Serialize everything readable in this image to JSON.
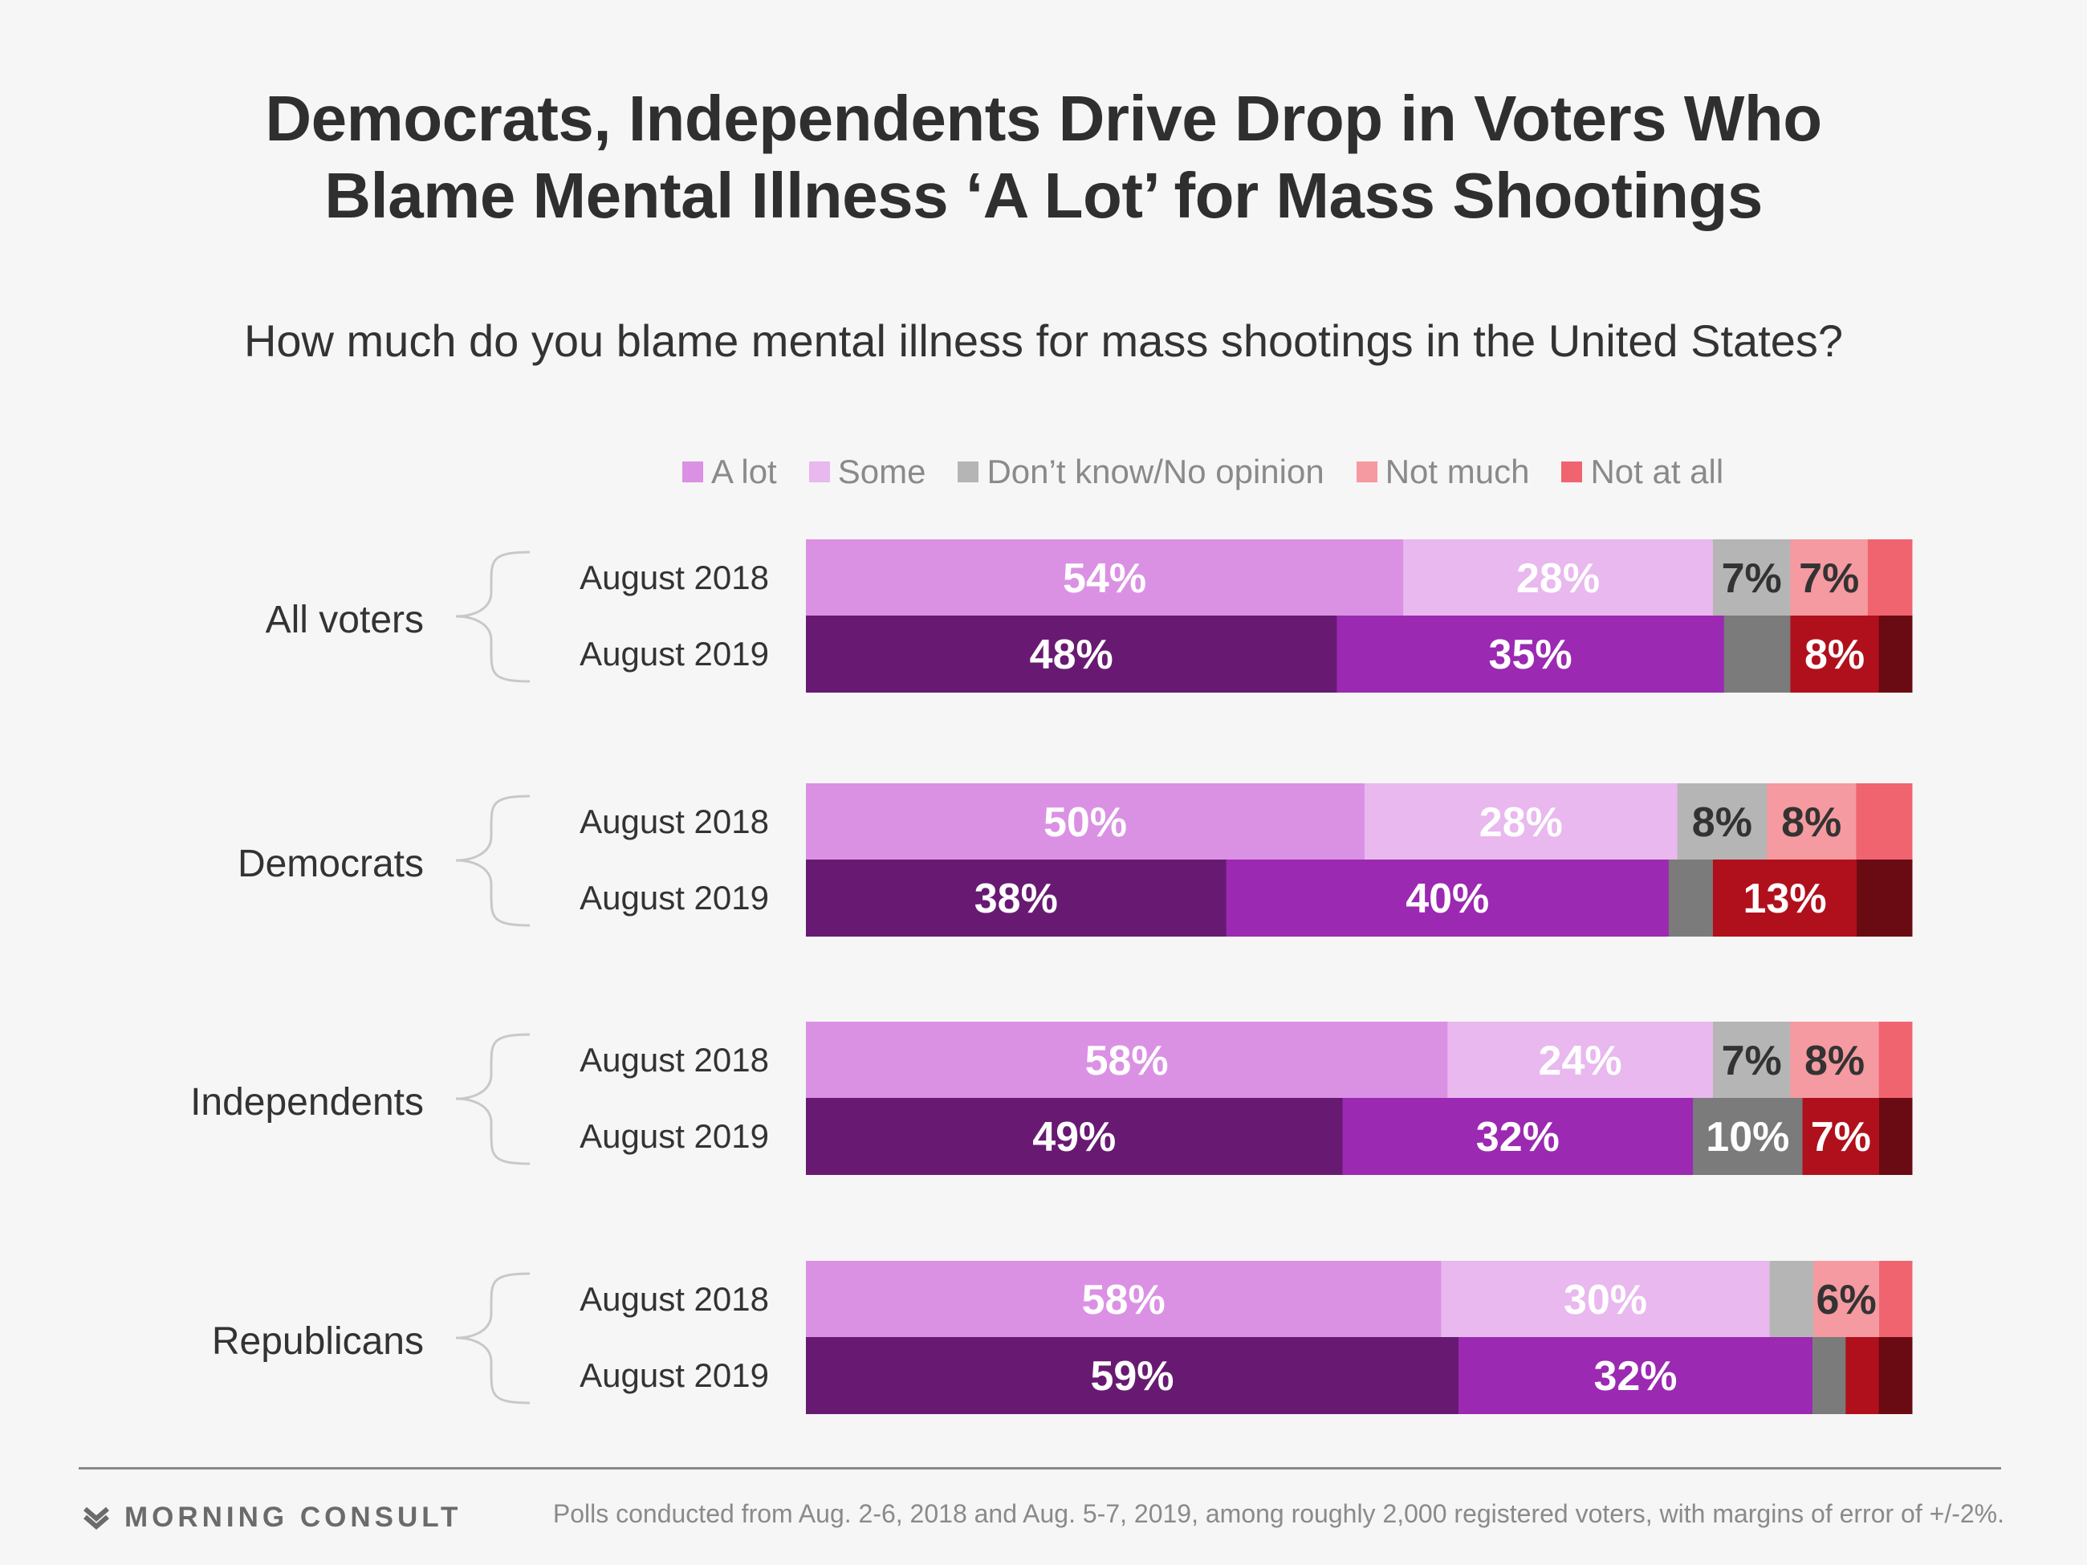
{
  "header": {
    "title_line1": "Democrats, Independents Drive Drop in Voters Who",
    "title_line2": "Blame Mental Illness ‘A Lot’ for Mass Shootings",
    "subtitle": "How much do you blame mental illness for mass shootings in the United States?"
  },
  "legend": [
    {
      "label": "A lot",
      "color": "#da91e3"
    },
    {
      "label": "Some",
      "color": "#e8b8ee"
    },
    {
      "label": "Don’t know/No opinion",
      "color": "#b5b5b5"
    },
    {
      "label": "Not much",
      "color": "#f59aa0"
    },
    {
      "label": "Not at all",
      "color": "#f06470"
    }
  ],
  "chart_data": {
    "type": "bar",
    "orientation": "horizontal",
    "stacked": true,
    "unit": "%",
    "xlim": [
      0,
      100
    ],
    "segments": [
      "A lot",
      "Some",
      "Don’t know/No opinion",
      "Not much",
      "Not at all"
    ],
    "palette_2018": [
      "#da91e3",
      "#e8b8ee",
      "#b5b5b5",
      "#f59aa0",
      "#f06470"
    ],
    "palette_2019": [
      "#681a72",
      "#9b29b2",
      "#7b7b7b",
      "#b0101c",
      "#6a0a12"
    ],
    "groups": [
      {
        "name": "All voters",
        "rows": [
          {
            "label": "August 2018",
            "values": [
              54,
              28,
              7,
              7,
              4
            ],
            "labels": [
              "54%",
              "28%",
              "7%",
              "7%",
              ""
            ]
          },
          {
            "label": "August 2019",
            "values": [
              48,
              35,
              6,
              8,
              3
            ],
            "labels": [
              "48%",
              "35%",
              "",
              "8%",
              ""
            ]
          }
        ]
      },
      {
        "name": "Democrats",
        "rows": [
          {
            "label": "August 2018",
            "values": [
              50,
              28,
              8,
              8,
              5
            ],
            "labels": [
              "50%",
              "28%",
              "8%",
              "8%",
              ""
            ]
          },
          {
            "label": "August 2019",
            "values": [
              38,
              40,
              4,
              13,
              5
            ],
            "labels": [
              "38%",
              "40%",
              "",
              "13%",
              ""
            ]
          }
        ]
      },
      {
        "name": "Independents",
        "rows": [
          {
            "label": "August 2018",
            "values": [
              58,
              24,
              7,
              8,
              3
            ],
            "labels": [
              "58%",
              "24%",
              "7%",
              "8%",
              ""
            ]
          },
          {
            "label": "August 2019",
            "values": [
              49,
              32,
              10,
              7,
              3
            ],
            "labels": [
              "49%",
              "32%",
              "10%",
              "7%",
              ""
            ]
          }
        ]
      },
      {
        "name": "Republicans",
        "rows": [
          {
            "label": "August 2018",
            "values": [
              58,
              30,
              4,
              6,
              3
            ],
            "labels": [
              "58%",
              "30%",
              "",
              "6%",
              ""
            ]
          },
          {
            "label": "August 2019",
            "values": [
              59,
              32,
              3,
              3,
              3
            ],
            "labels": [
              "59%",
              "32%",
              "",
              "",
              ""
            ]
          }
        ]
      }
    ]
  },
  "footer": {
    "brand": "MORNING CONSULT",
    "note": "Polls conducted from Aug. 2-6, 2018 and Aug. 5-7, 2019, among roughly 2,000 registered voters, with margins of error of +/-2%."
  }
}
